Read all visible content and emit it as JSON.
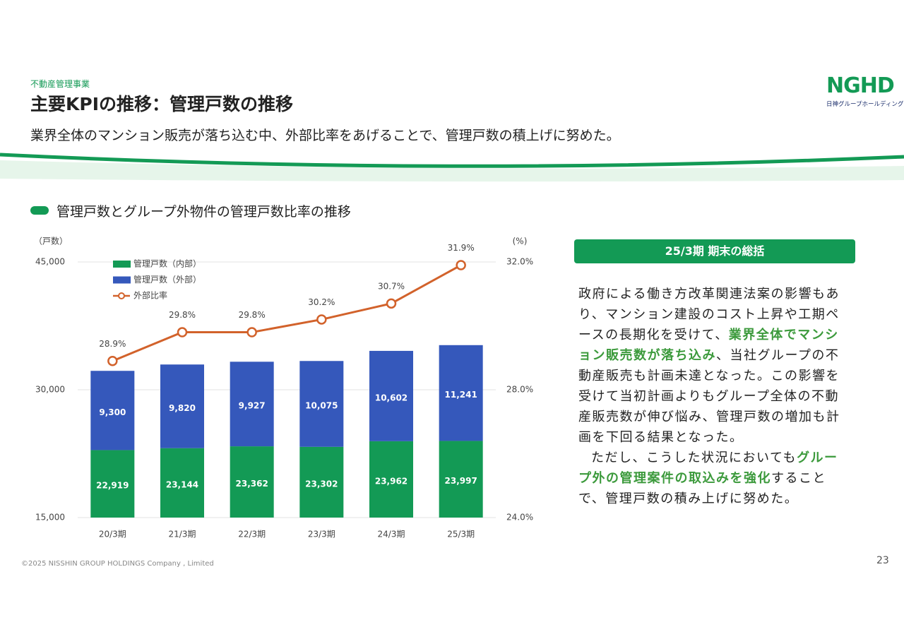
{
  "header": {
    "category": "不動産管理事業",
    "title": "主要KPIの推移：管理戸数の推移",
    "subtitle": "業界全体のマンション販売が落ち込む中、外部比率をあげることで、管理戸数の積上げに努めた。",
    "logo": "NGHD",
    "logo_sub": "日神グループホールディングス"
  },
  "chart_data": {
    "type": "bar",
    "stacked": true,
    "title": "管理戸数とグループ外物件の管理戸数比率の推移",
    "ylabel": "（戸数）",
    "y2label": "(%)",
    "categories": [
      "20/3期",
      "21/3期",
      "22/3期",
      "23/3期",
      "24/3期",
      "25/3期"
    ],
    "series": [
      {
        "name": "管理戸数（内部）",
        "color": "#139a55",
        "values": [
          22919,
          23144,
          23362,
          23302,
          23962,
          23997
        ],
        "value_labels": [
          "22,919",
          "23,144",
          "23,362",
          "23,302",
          "23,962",
          "23,997"
        ]
      },
      {
        "name": "管理戸数（外部）",
        "color": "#3558bb",
        "values": [
          9300,
          9820,
          9927,
          10075,
          10602,
          11241
        ],
        "value_labels": [
          "9,300",
          "9,820",
          "9,927",
          "10,075",
          "10,602",
          "11,241"
        ]
      },
      {
        "name": "外部比率",
        "type": "line",
        "axis": "y2",
        "color": "#d2622b",
        "values": [
          28.9,
          29.8,
          29.8,
          30.2,
          30.7,
          31.9
        ],
        "value_labels": [
          "28.9%",
          "29.8%",
          "29.8%",
          "30.2%",
          "30.7%",
          "31.9%"
        ]
      }
    ],
    "ylim": [
      15000,
      45000
    ],
    "yticks": [
      {
        "value": 15000,
        "label": "15,000"
      },
      {
        "value": 30000,
        "label": "30,000"
      },
      {
        "value": 45000,
        "label": "45,000"
      }
    ],
    "y2lim": [
      24,
      32
    ],
    "y2ticks": [
      {
        "value": 24,
        "label": "24.0%"
      },
      {
        "value": 28,
        "label": "28.0%"
      },
      {
        "value": 32,
        "label": "32.0%"
      }
    ],
    "grid": true,
    "legend": "top-left"
  },
  "summary": {
    "title": "25/3期 期末の総括",
    "paragraphs": [
      {
        "indent": false,
        "segments": [
          {
            "text": "政府による働き方改革関連法案の影響もあり、マンション建設のコスト上昇や工期ペースの長期化を受けて、",
            "highlight": false
          },
          {
            "text": "業界全体でマンション販売数が落ち込み",
            "highlight": true
          },
          {
            "text": "、当社グループの不動産販売も計画未達となった。この影響を受けて当初計画よりもグループ全体の不動産販売数が伸び悩み、管理戸数の増加も計画を下回る結果となった。",
            "highlight": false
          }
        ]
      },
      {
        "indent": true,
        "segments": [
          {
            "text": "ただし、こうした状況においても",
            "highlight": false
          },
          {
            "text": "グループ外の管理案件の取込みを強化",
            "highlight": true
          },
          {
            "text": "することで、管理戸数の積み上げに努めた。",
            "highlight": false
          }
        ]
      }
    ]
  },
  "footer": {
    "copyright": "©2025 NISSHIN GROUP HOLDINGS Company , Limited",
    "page": "23"
  }
}
